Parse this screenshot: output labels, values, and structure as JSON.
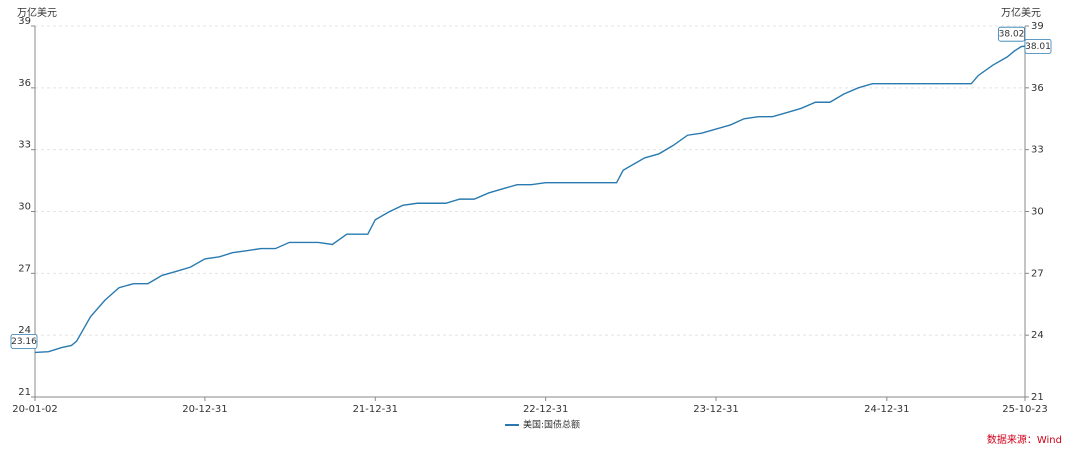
{
  "chart_data": {
    "type": "line",
    "y_label": "万亿美元",
    "y2_label": "万亿美元",
    "source": "数据来源：Wind",
    "x": [
      "20-01-02",
      "20-01-31",
      "20-02-28",
      "20-03-20",
      "20-03-31",
      "20-04-30",
      "20-05-31",
      "20-06-30",
      "20-07-31",
      "20-08-31",
      "20-09-30",
      "20-10-31",
      "20-11-30",
      "20-12-31",
      "21-01-31",
      "21-02-28",
      "21-03-31",
      "21-04-30",
      "21-05-31",
      "21-06-30",
      "21-07-31",
      "21-08-31",
      "21-09-30",
      "21-10-31",
      "21-11-30",
      "21-12-15",
      "21-12-31",
      "22-01-31",
      "22-02-28",
      "22-03-31",
      "22-04-30",
      "22-05-31",
      "22-06-30",
      "22-07-31",
      "22-08-31",
      "22-09-30",
      "22-10-31",
      "22-11-30",
      "22-12-31",
      "23-01-31",
      "23-03-31",
      "23-06-01",
      "23-06-15",
      "23-07-31",
      "23-08-31",
      "23-09-30",
      "23-10-31",
      "23-11-30",
      "23-12-31",
      "24-01-31",
      "24-02-29",
      "24-03-31",
      "24-04-30",
      "24-05-31",
      "24-06-30",
      "24-07-31",
      "24-08-31",
      "24-09-30",
      "24-10-31",
      "24-11-30",
      "24-12-31",
      "25-02-28",
      "25-04-30",
      "25-06-30",
      "25-07-15",
      "25-08-15",
      "25-09-15",
      "25-10-01",
      "25-10-15",
      "25-10-22",
      "25-10-23"
    ],
    "series": [
      {
        "name": "美国:国债总额",
        "color": "#2a7ab0",
        "values": [
          23.16,
          23.2,
          23.4,
          23.5,
          23.7,
          24.9,
          25.7,
          26.3,
          26.5,
          26.5,
          26.9,
          27.1,
          27.3,
          27.7,
          27.8,
          28.0,
          28.1,
          28.2,
          28.2,
          28.5,
          28.5,
          28.5,
          28.4,
          28.9,
          28.9,
          28.9,
          29.6,
          30.0,
          30.3,
          30.4,
          30.4,
          30.4,
          30.6,
          30.6,
          30.9,
          31.1,
          31.3,
          31.3,
          31.4,
          31.4,
          31.4,
          31.4,
          32.0,
          32.6,
          32.8,
          33.2,
          33.7,
          33.8,
          34.0,
          34.2,
          34.5,
          34.6,
          34.6,
          34.8,
          35.0,
          35.3,
          35.3,
          35.7,
          36.0,
          36.2,
          36.2,
          36.2,
          36.2,
          36.2,
          36.6,
          37.1,
          37.5,
          37.8,
          38.0,
          38.02,
          38.01
        ]
      }
    ],
    "callouts": [
      {
        "x": "20-01-02",
        "value": 23.16
      },
      {
        "x": "25-10-22",
        "value": 38.02
      },
      {
        "x": "25-10-23",
        "value": 38.01
      }
    ],
    "xlim": [
      "20-01-02",
      "25-10-23"
    ],
    "xticks": [
      "20-01-02",
      "20-12-31",
      "21-12-31",
      "22-12-31",
      "23-12-31",
      "24-12-31",
      "25-10-23"
    ],
    "ylim": [
      21,
      39
    ],
    "yticks": [
      21,
      24,
      27,
      30,
      33,
      36,
      39
    ],
    "y2lim": [
      21,
      39
    ],
    "y2ticks": [
      21,
      24,
      27,
      30,
      33,
      36,
      39
    ],
    "grid": true
  }
}
